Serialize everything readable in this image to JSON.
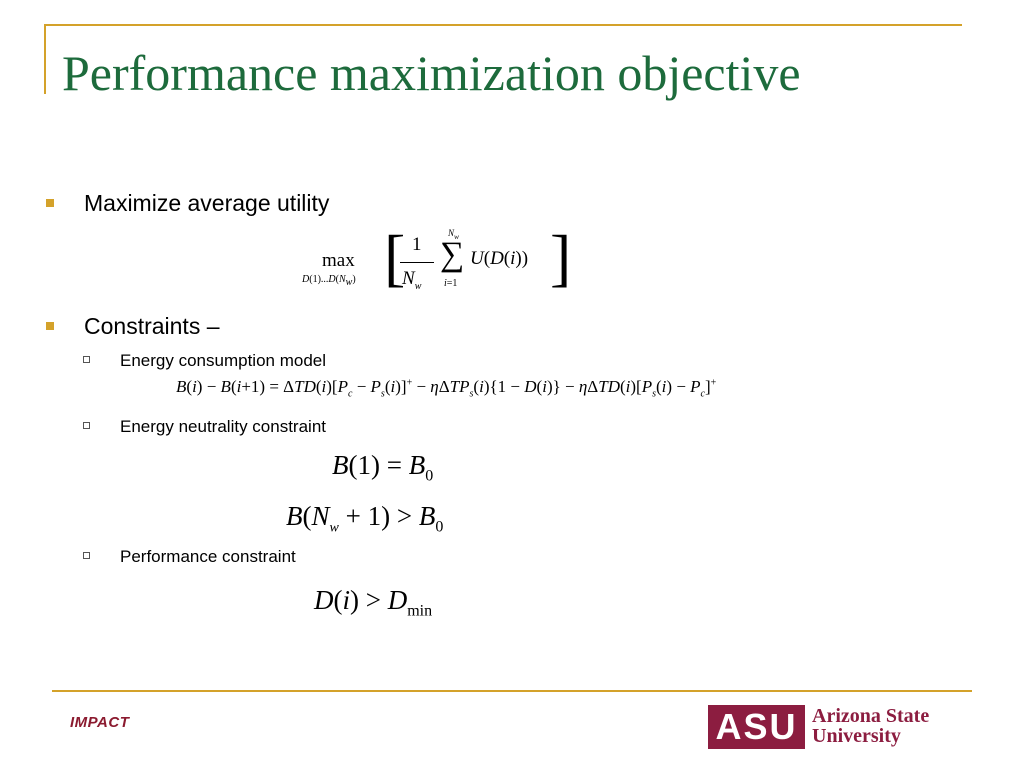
{
  "slide": {
    "title": "Performance maximization objective",
    "bullets": [
      {
        "label": "Maximize average utility"
      },
      {
        "label": "Constraints –"
      }
    ],
    "sub_bullets": [
      {
        "label": "Energy consumption model"
      },
      {
        "label": "Energy neutrality constraint"
      },
      {
        "label": "Performance constraint"
      }
    ]
  },
  "equations": {
    "objective_max": "max",
    "objective_max_sub": "D(1)...D(N_w)",
    "objective_body": "[ 1/N_w Σ_{i=1}^{N_w} U(D(i)) ]",
    "energy_model": "B(i) − B(i+1) = ΔTD(i)[P_c − P_s(i)]^+ − ηΔTP_s(i){1 − D(i)} − ηΔTD(i)[P_s(i) − P_c]^+",
    "neutrality_1": "B(1) = B_0",
    "neutrality_2": "B(N_w + 1) > B_0",
    "performance": "D(i) > D_min"
  },
  "footer": {
    "left_logo_text": "IMPACT",
    "right_logo_mark": "ASU",
    "right_logo_line1": "Arizona State",
    "right_logo_line2": "University"
  }
}
